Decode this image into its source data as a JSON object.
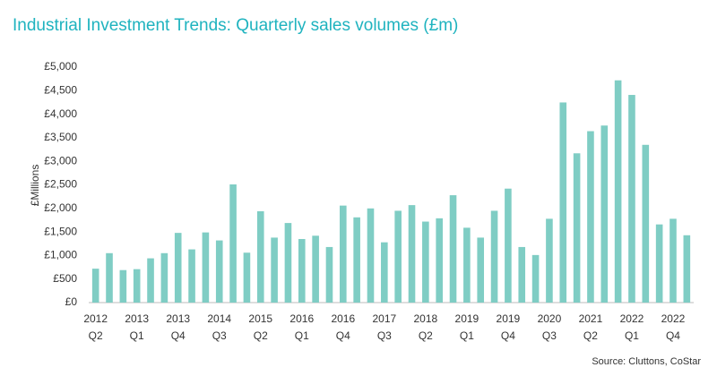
{
  "chart_data": {
    "type": "bar",
    "title": "Industrial Investment Trends: Quarterly sales volumes (£m)",
    "y_label": "£Millions",
    "source": "Source: Cluttons, CoStar",
    "color": "#7fcdc4",
    "categories": [
      [
        "2012",
        "Q2"
      ],
      null,
      null,
      [
        "2013",
        "Q1"
      ],
      null,
      null,
      [
        "2013",
        "Q4"
      ],
      null,
      null,
      [
        "2014",
        "Q3"
      ],
      null,
      null,
      [
        "2015",
        "Q2"
      ],
      null,
      null,
      [
        "2016",
        "Q1"
      ],
      null,
      null,
      [
        "2016",
        "Q4"
      ],
      null,
      null,
      [
        "2017",
        "Q3"
      ],
      null,
      null,
      [
        "2018",
        "Q2"
      ],
      null,
      null,
      [
        "2019",
        "Q1"
      ],
      null,
      null,
      [
        "2019",
        "Q4"
      ],
      null,
      null,
      [
        "2020",
        "Q3"
      ],
      null,
      null,
      [
        "2021",
        "Q2"
      ],
      null,
      null,
      [
        "2022",
        "Q1"
      ],
      null,
      null,
      [
        "2022",
        "Q4"
      ],
      null
    ],
    "values": [
      720,
      1050,
      690,
      710,
      940,
      1050,
      1480,
      1130,
      1490,
      1320,
      2510,
      1060,
      1940,
      1380,
      1690,
      1350,
      1420,
      1180,
      2060,
      1810,
      2000,
      1280,
      1950,
      2070,
      1720,
      1790,
      2280,
      1590,
      1380,
      1950,
      2420,
      1180,
      1010,
      1780,
      4250,
      3170,
      3640,
      3760,
      4720,
      4410,
      3350,
      1660,
      1780,
      1430
    ],
    "ylim": [
      0,
      5000
    ],
    "yticks": [
      {
        "value": 0,
        "label": "£0"
      },
      {
        "value": 500,
        "label": "£500"
      },
      {
        "value": 1000,
        "label": "£1,000"
      },
      {
        "value": 1500,
        "label": "£1,500"
      },
      {
        "value": 2000,
        "label": "£2,000"
      },
      {
        "value": 2500,
        "label": "£2,500"
      },
      {
        "value": 3000,
        "label": "£3,000"
      },
      {
        "value": 3500,
        "label": "£3,500"
      },
      {
        "value": 4000,
        "label": "£4,000"
      },
      {
        "value": 4500,
        "label": "£4,500"
      },
      {
        "value": 5000,
        "label": "£5,000"
      }
    ]
  }
}
